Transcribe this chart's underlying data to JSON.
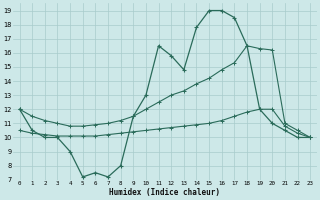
{
  "xlabel": "Humidex (Indice chaleur)",
  "bg_color": "#cde8e8",
  "grid_color": "#a8cccc",
  "line_color": "#2a6b5a",
  "ylim": [
    7,
    19.5
  ],
  "xlim": [
    -0.5,
    23.5
  ],
  "yticks": [
    7,
    8,
    9,
    10,
    11,
    12,
    13,
    14,
    15,
    16,
    17,
    18,
    19
  ],
  "xticks": [
    0,
    1,
    2,
    3,
    4,
    5,
    6,
    7,
    8,
    9,
    10,
    11,
    12,
    13,
    14,
    15,
    16,
    17,
    18,
    19,
    20,
    21,
    22,
    23
  ],
  "xtick_labels": [
    "0",
    "1",
    "2",
    "3",
    "4",
    "5",
    "6",
    "7",
    "8",
    "9",
    "10",
    "11",
    "12",
    "13",
    "14",
    "15",
    "16",
    "17",
    "18",
    "19",
    "20",
    "21",
    "22",
    "23"
  ],
  "line1_x": [
    0,
    1,
    2,
    3,
    4,
    5,
    6,
    7,
    8,
    9,
    10,
    11,
    12,
    13,
    14,
    15,
    16,
    17,
    18,
    19,
    20,
    21,
    22,
    23
  ],
  "line1_y": [
    12.0,
    10.5,
    10.0,
    10.0,
    9.0,
    7.2,
    7.5,
    7.2,
    8.0,
    11.5,
    13.0,
    16.5,
    15.8,
    14.8,
    17.8,
    19.0,
    19.0,
    18.5,
    16.5,
    12.0,
    11.0,
    10.5,
    10.0,
    10.0
  ],
  "line2_x": [
    0,
    1,
    2,
    3,
    4,
    5,
    6,
    7,
    8,
    9,
    10,
    11,
    12,
    13,
    14,
    15,
    16,
    17,
    18,
    19,
    20,
    21,
    22,
    23
  ],
  "line2_y": [
    12.0,
    11.5,
    11.2,
    11.0,
    10.8,
    10.8,
    10.9,
    11.0,
    11.2,
    11.5,
    12.0,
    12.5,
    13.0,
    13.3,
    13.8,
    14.2,
    14.8,
    15.3,
    16.5,
    16.3,
    16.2,
    11.0,
    10.5,
    10.0
  ],
  "line3_x": [
    0,
    1,
    2,
    3,
    4,
    5,
    6,
    7,
    8,
    9,
    10,
    11,
    12,
    13,
    14,
    15,
    16,
    17,
    18,
    19,
    20,
    21,
    22,
    23
  ],
  "line3_y": [
    10.5,
    10.3,
    10.2,
    10.1,
    10.1,
    10.1,
    10.1,
    10.2,
    10.3,
    10.4,
    10.5,
    10.6,
    10.7,
    10.8,
    10.9,
    11.0,
    11.2,
    11.5,
    11.8,
    12.0,
    12.0,
    10.8,
    10.3,
    10.0
  ]
}
